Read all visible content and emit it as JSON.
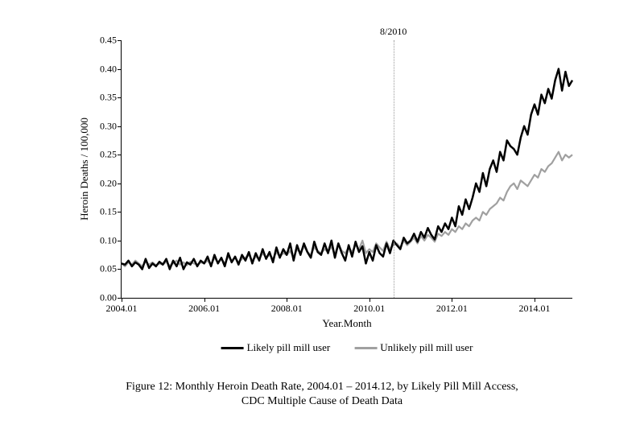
{
  "chart": {
    "type": "line",
    "background_color": "#ffffff",
    "ylabel": "Heroin Deaths / 100,000",
    "xlabel": "Year.Month",
    "label_fontsize": 13,
    "tick_fontsize": 12,
    "ylim": [
      0.0,
      0.45
    ],
    "ytick_step": 0.05,
    "yticks": [
      "0.00",
      "0.05",
      "0.10",
      "0.15",
      "0.20",
      "0.25",
      "0.30",
      "0.35",
      "0.40",
      "0.45"
    ],
    "xlim": [
      "2004.01",
      "2014.12"
    ],
    "xticks": [
      "2004.01",
      "2006.01",
      "2008.01",
      "2010.01",
      "2012.01",
      "2014.01"
    ],
    "xtick_indices": [
      0,
      24,
      48,
      72,
      96,
      120
    ],
    "x_count": 132,
    "reference_line": {
      "label": "8/2010",
      "index": 79,
      "style": "dotted",
      "color": "#999999"
    },
    "series": [
      {
        "name": "Unlikely pill mill user",
        "color": "#a0a0a0",
        "line_width": 2.2,
        "values": [
          0.06,
          0.055,
          0.062,
          0.058,
          0.065,
          0.06,
          0.055,
          0.063,
          0.058,
          0.062,
          0.057,
          0.06,
          0.058,
          0.063,
          0.056,
          0.06,
          0.065,
          0.058,
          0.062,
          0.057,
          0.063,
          0.06,
          0.058,
          0.062,
          0.06,
          0.065,
          0.058,
          0.07,
          0.062,
          0.068,
          0.06,
          0.072,
          0.065,
          0.07,
          0.062,
          0.068,
          0.07,
          0.075,
          0.065,
          0.072,
          0.068,
          0.078,
          0.07,
          0.075,
          0.068,
          0.08,
          0.072,
          0.078,
          0.075,
          0.082,
          0.07,
          0.085,
          0.078,
          0.09,
          0.08,
          0.075,
          0.088,
          0.082,
          0.078,
          0.085,
          0.08,
          0.09,
          0.075,
          0.095,
          0.082,
          0.078,
          0.088,
          0.08,
          0.092,
          0.085,
          0.1,
          0.078,
          0.085,
          0.08,
          0.095,
          0.088,
          0.082,
          0.098,
          0.085,
          0.092,
          0.095,
          0.088,
          0.1,
          0.092,
          0.098,
          0.105,
          0.095,
          0.108,
          0.1,
          0.11,
          0.105,
          0.098,
          0.112,
          0.108,
          0.115,
          0.11,
          0.12,
          0.115,
          0.125,
          0.12,
          0.13,
          0.125,
          0.135,
          0.14,
          0.135,
          0.15,
          0.145,
          0.155,
          0.16,
          0.165,
          0.175,
          0.17,
          0.185,
          0.195,
          0.2,
          0.19,
          0.205,
          0.2,
          0.195,
          0.205,
          0.215,
          0.21,
          0.225,
          0.22,
          0.23,
          0.235,
          0.245,
          0.255,
          0.24,
          0.25,
          0.245,
          0.25
        ]
      },
      {
        "name": "Likely pill mill user",
        "color": "#000000",
        "line_width": 2.5,
        "values": [
          0.06,
          0.058,
          0.065,
          0.055,
          0.062,
          0.058,
          0.05,
          0.068,
          0.052,
          0.06,
          0.055,
          0.063,
          0.058,
          0.068,
          0.05,
          0.065,
          0.055,
          0.07,
          0.05,
          0.062,
          0.058,
          0.068,
          0.055,
          0.065,
          0.06,
          0.072,
          0.055,
          0.075,
          0.06,
          0.07,
          0.055,
          0.078,
          0.062,
          0.072,
          0.058,
          0.075,
          0.065,
          0.08,
          0.06,
          0.078,
          0.065,
          0.085,
          0.068,
          0.08,
          0.062,
          0.088,
          0.07,
          0.085,
          0.075,
          0.095,
          0.065,
          0.092,
          0.075,
          0.095,
          0.08,
          0.07,
          0.098,
          0.08,
          0.075,
          0.095,
          0.078,
          0.1,
          0.07,
          0.095,
          0.078,
          0.065,
          0.092,
          0.072,
          0.098,
          0.08,
          0.09,
          0.06,
          0.08,
          0.065,
          0.092,
          0.078,
          0.072,
          0.095,
          0.078,
          0.1,
          0.092,
          0.085,
          0.105,
          0.095,
          0.1,
          0.112,
          0.098,
          0.115,
          0.105,
          0.122,
          0.11,
          0.102,
          0.125,
          0.115,
          0.13,
          0.12,
          0.14,
          0.125,
          0.16,
          0.145,
          0.172,
          0.155,
          0.175,
          0.2,
          0.185,
          0.218,
          0.195,
          0.225,
          0.24,
          0.22,
          0.255,
          0.24,
          0.275,
          0.265,
          0.26,
          0.25,
          0.28,
          0.3,
          0.285,
          0.32,
          0.338,
          0.32,
          0.355,
          0.34,
          0.365,
          0.348,
          0.38,
          0.4,
          0.362,
          0.395,
          0.37,
          0.38
        ]
      }
    ],
    "legend": {
      "position": "bottom",
      "items": [
        {
          "label": "Likely pill mill user",
          "color": "#000000"
        },
        {
          "label": "Unlikely pill mill user",
          "color": "#a0a0a0"
        }
      ]
    },
    "axis_color": "#000000"
  },
  "caption": {
    "line1": "Figure 12:  Monthly Heroin Death Rate, 2004.01 – 2014.12, by Likely Pill Mill Access,",
    "line2": "CDC Multiple Cause of Death Data",
    "fontsize": 14
  }
}
